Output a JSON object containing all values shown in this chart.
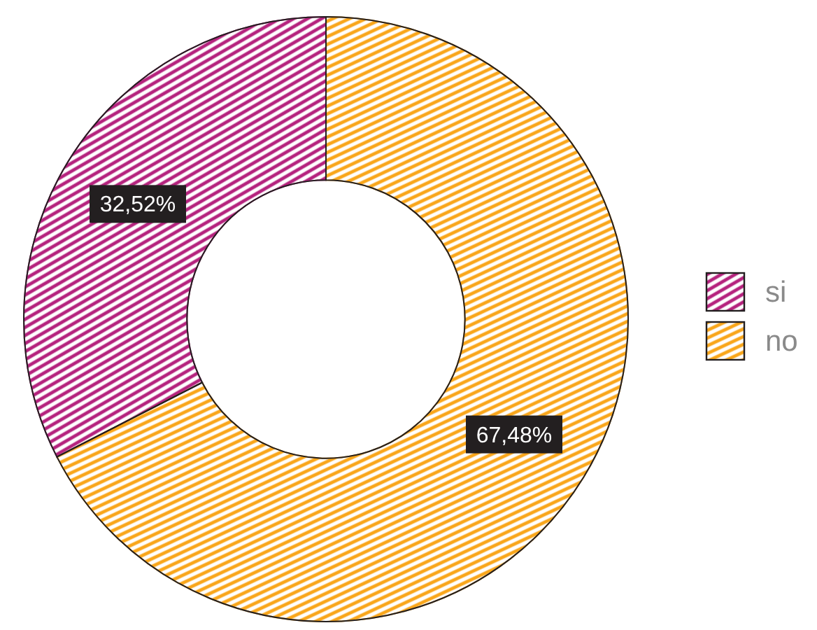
{
  "chart_data": {
    "type": "donut",
    "categories": [
      "si",
      "no"
    ],
    "values": [
      32.52,
      67.48
    ],
    "colors": [
      "#b5237e",
      "#f9a61b"
    ],
    "value_labels": [
      "32,52%",
      "67,48%"
    ],
    "legend": "right"
  }
}
